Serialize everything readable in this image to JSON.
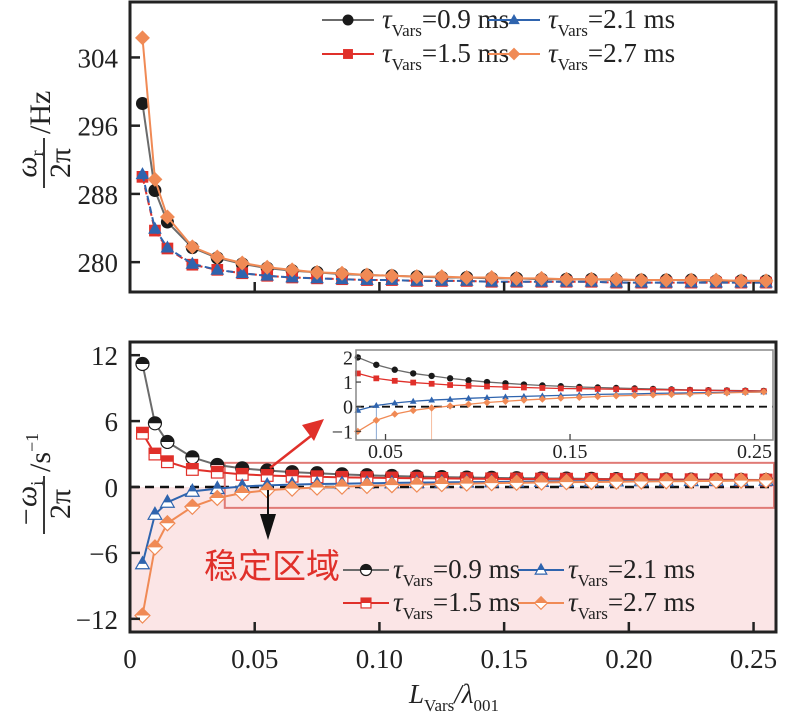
{
  "chart_data": [
    {
      "id": "top",
      "type": "line",
      "title": "",
      "ylabel": {
        "numerator": "ω",
        "numerator_sub": "r",
        "denominator": "2π",
        "unit": "/Hz"
      },
      "xlabel": "",
      "xlim": [
        0,
        0.259
      ],
      "ylim": [
        276.5,
        310.5
      ],
      "xticks": [
        0.05,
        0.1,
        0.15,
        0.2,
        0.25
      ],
      "xtick_labels_visible": false,
      "yticks": [
        280,
        288,
        296,
        304
      ],
      "ytick_labels": [
        "280",
        "288",
        "296",
        "304"
      ],
      "legend": {
        "placement": "top-right",
        "columns": 2
      },
      "x": [
        0.005,
        0.01,
        0.015,
        0.025,
        0.035,
        0.045,
        0.055,
        0.065,
        0.075,
        0.085,
        0.095,
        0.105,
        0.115,
        0.125,
        0.135,
        0.145,
        0.155,
        0.165,
        0.175,
        0.185,
        0.195,
        0.205,
        0.215,
        0.225,
        0.235,
        0.245,
        0.255
      ],
      "series": [
        {
          "name": "τVars=0.9 ms",
          "label_main": "τ",
          "label_sub": "Vars",
          "label_rest": "=0.9 ms",
          "color": "#6b6b6b",
          "marker_color": "#1a1a1a",
          "marker": "circle",
          "dashed": false,
          "values": [
            298.6,
            288.4,
            284.7,
            281.7,
            280.5,
            279.8,
            279.3,
            279.0,
            278.8,
            278.6,
            278.5,
            278.4,
            278.3,
            278.2,
            278.2,
            278.1,
            278.1,
            278.0,
            278.0,
            278.0,
            277.9,
            277.9,
            277.9,
            277.9,
            277.8,
            277.8,
            277.8
          ]
        },
        {
          "name": "τVars=1.5 ms",
          "label_main": "τ",
          "label_sub": "Vars",
          "label_rest": "=1.5 ms",
          "color": "#e0302a",
          "marker_color": "#e0302a",
          "marker": "square",
          "dashed": true,
          "values": [
            290.0,
            283.7,
            281.6,
            279.7,
            279.1,
            278.7,
            278.4,
            278.2,
            278.1,
            278.0,
            277.9,
            277.9,
            277.8,
            277.8,
            277.8,
            277.7,
            277.7,
            277.7,
            277.7,
            277.7,
            277.6,
            277.6,
            277.6,
            277.6,
            277.6,
            277.6,
            277.6
          ]
        },
        {
          "name": "τVars=2.1 ms",
          "label_main": "τ",
          "label_sub": "Vars",
          "label_rest": "=2.1 ms",
          "color": "#2f64ae",
          "marker_color": "#2f64ae",
          "marker": "triangle",
          "dashed": true,
          "values": [
            290.3,
            283.9,
            281.7,
            279.8,
            279.1,
            278.7,
            278.4,
            278.2,
            278.1,
            278.0,
            277.9,
            277.9,
            277.8,
            277.8,
            277.8,
            277.7,
            277.7,
            277.7,
            277.7,
            277.7,
            277.6,
            277.6,
            277.6,
            277.6,
            277.6,
            277.6,
            277.6
          ]
        },
        {
          "name": "τVars=2.7 ms",
          "label_main": "τ",
          "label_sub": "Vars",
          "label_rest": "=2.7 ms",
          "color": "#f08a55",
          "marker_color": "#f08a55",
          "marker": "diamond",
          "dashed": false,
          "values": [
            306.3,
            289.7,
            285.3,
            281.8,
            280.6,
            279.9,
            279.4,
            279.1,
            278.8,
            278.7,
            278.5,
            278.4,
            278.3,
            278.3,
            278.2,
            278.2,
            278.1,
            278.1,
            278.0,
            278.0,
            278.0,
            277.9,
            277.9,
            277.9,
            277.9,
            277.8,
            277.8
          ]
        }
      ]
    },
    {
      "id": "bottom",
      "type": "line",
      "title": "",
      "ylabel": {
        "numerator": "−ω",
        "numerator_sub": "i",
        "denominator": "2π",
        "unit": "/s",
        "unit_sup": "−1"
      },
      "xlabel": {
        "main": "L",
        "main_sub": "Vars",
        "rest": "/λ",
        "rest_sub": "001"
      },
      "xlim": [
        0,
        0.259
      ],
      "ylim": [
        -13.2,
        13.2
      ],
      "xticks": [
        0,
        0.05,
        0.1,
        0.15,
        0.2,
        0.25
      ],
      "xtick_labels": [
        "0",
        "0.05",
        "0.10",
        "0.15",
        "0.20",
        "0.25"
      ],
      "yticks": [
        -12,
        -6,
        0,
        6,
        12
      ],
      "ytick_labels": [
        "−12",
        "−6",
        "0",
        "6",
        "12"
      ],
      "reference_line": {
        "y": 0,
        "style": "dashed",
        "color": "#111111"
      },
      "stable_region": {
        "label": "稳定区域",
        "below_y": 0,
        "fill": "#fbe5e6",
        "label_color": "#e0302a"
      },
      "highlight_box": {
        "x_range": [
          0.038,
          0.259
        ],
        "y_range": [
          -1.9,
          2.2
        ],
        "color": "#e07a76"
      },
      "legend": {
        "placement": "bottom-right",
        "columns": 2
      },
      "x": [
        0.005,
        0.01,
        0.015,
        0.025,
        0.035,
        0.045,
        0.055,
        0.065,
        0.075,
        0.085,
        0.095,
        0.105,
        0.115,
        0.125,
        0.135,
        0.145,
        0.155,
        0.165,
        0.175,
        0.185,
        0.195,
        0.205,
        0.215,
        0.225,
        0.235,
        0.245,
        0.255
      ],
      "series": [
        {
          "name": "τVars=0.9 ms",
          "label_main": "τ",
          "label_sub": "Vars",
          "label_rest": "=0.9 ms",
          "color": "#6b6b6b",
          "marker_color": "#1a1a1a",
          "marker": "circle-half",
          "values": [
            11.2,
            5.8,
            4.1,
            2.7,
            2.0,
            1.7,
            1.5,
            1.35,
            1.25,
            1.15,
            1.07,
            1.0,
            0.95,
            0.9,
            0.86,
            0.83,
            0.8,
            0.78,
            0.76,
            0.74,
            0.72,
            0.7,
            0.68,
            0.67,
            0.66,
            0.65,
            0.64
          ]
        },
        {
          "name": "τVars=1.5 ms",
          "label_main": "τ",
          "label_sub": "Vars",
          "label_rest": "=1.5 ms",
          "color": "#e0302a",
          "marker_color": "#e0302a",
          "marker": "square-half",
          "values": [
            4.9,
            3.0,
            2.3,
            1.6,
            1.35,
            1.15,
            1.05,
            0.98,
            0.93,
            0.88,
            0.85,
            0.82,
            0.8,
            0.78,
            0.76,
            0.74,
            0.73,
            0.72,
            0.71,
            0.7,
            0.69,
            0.68,
            0.67,
            0.66,
            0.65,
            0.64,
            0.63
          ]
        },
        {
          "name": "τVars=2.1 ms",
          "label_main": "τ",
          "label_sub": "Vars",
          "label_rest": "=2.1 ms",
          "color": "#2f64ae",
          "marker_color": "#2f64ae",
          "marker": "triangle-half",
          "values": [
            -7.0,
            -2.5,
            -1.4,
            -0.4,
            -0.15,
            0.05,
            0.15,
            0.22,
            0.27,
            0.3,
            0.34,
            0.37,
            0.4,
            0.42,
            0.44,
            0.46,
            0.48,
            0.5,
            0.51,
            0.52,
            0.54,
            0.55,
            0.56,
            0.57,
            0.58,
            0.59,
            0.6
          ]
        },
        {
          "name": "τVars=2.7 ms",
          "label_main": "τ",
          "label_sub": "Vars",
          "label_rest": "=2.7 ms",
          "color": "#f08a55",
          "marker_color": "#f08a55",
          "marker": "diamond-half",
          "values": [
            -11.7,
            -5.5,
            -3.3,
            -1.8,
            -1.0,
            -0.55,
            -0.3,
            -0.15,
            -0.05,
            0.03,
            0.1,
            0.17,
            0.22,
            0.27,
            0.31,
            0.35,
            0.38,
            0.41,
            0.44,
            0.46,
            0.48,
            0.5,
            0.52,
            0.54,
            0.56,
            0.58,
            0.6
          ]
        }
      ]
    },
    {
      "id": "inset",
      "type": "line",
      "title": "",
      "xlim": [
        0.034,
        0.26
      ],
      "ylim": [
        -1.35,
        2.3
      ],
      "xticks": [
        0.05,
        0.15,
        0.25
      ],
      "xtick_labels": [
        "0.05",
        "0.15",
        "0.25"
      ],
      "yticks": [
        -1,
        0,
        1,
        2
      ],
      "ytick_labels": [
        "−1",
        "0",
        "1",
        "2"
      ],
      "reference_line": {
        "y": 0,
        "style": "dashed"
      },
      "crossing_markers": [
        {
          "series": "τVars=2.1 ms",
          "x": 0.045
        },
        {
          "series": "τVars=2.7 ms",
          "x": 0.075
        }
      ],
      "source": "bottom",
      "x_min_shown": 0.035
    }
  ],
  "annotations": {
    "stable_label": "稳定区域"
  }
}
